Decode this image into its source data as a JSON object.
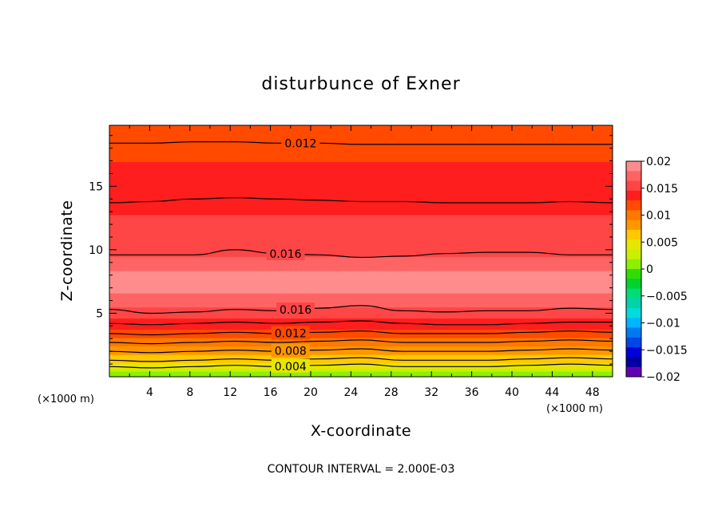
{
  "chart_data": {
    "type": "heatmap",
    "title": "disturbunce of Exner",
    "xlabel": "X-coordinate",
    "ylabel": "Z-coordinate",
    "x_unit": "(×1000 m)",
    "z_unit": "(×1000 m)",
    "xlim": [
      0,
      50
    ],
    "ylim": [
      0,
      19.8
    ],
    "x_ticks": [
      "4",
      "8",
      "12",
      "16",
      "20",
      "24",
      "28",
      "32",
      "36",
      "40",
      "44",
      "48"
    ],
    "y_ticks": [
      "5",
      "10",
      "15"
    ],
    "footer": "CONTOUR INTERVAL = 2.000E-03",
    "contour_labels": [
      "0.012",
      "0.016",
      "0.016",
      "0.012",
      "0.008",
      "0.004"
    ],
    "colorbar": {
      "ticks": [
        "0.02",
        "0.015",
        "0.01",
        "0.005",
        "0",
        "-0.005",
        "-0.01",
        "-0.015",
        "-0.02"
      ],
      "colors": [
        "#ff8c8c",
        "#ff6464",
        "#ff4646",
        "#ff1e1e",
        "#ff4a00",
        "#ff7800",
        "#ff9600",
        "#ffc800",
        "#e6e600",
        "#c8f000",
        "#8cf000",
        "#32dc00",
        "#00d230",
        "#00dc78",
        "#00d2aa",
        "#00dcdc",
        "#00b4ff",
        "#0078f0",
        "#0046e6",
        "#0000dc",
        "#0000a0",
        "#6400b4"
      ]
    },
    "level_profile": [
      {
        "z": 0.0,
        "value": 0.0
      },
      {
        "z": 0.4,
        "value": 0.002
      },
      {
        "z": 0.8,
        "value": 0.004
      },
      {
        "z": 1.3,
        "value": 0.006
      },
      {
        "z": 2.0,
        "value": 0.008
      },
      {
        "z": 2.7,
        "value": 0.01
      },
      {
        "z": 3.4,
        "value": 0.012
      },
      {
        "z": 4.3,
        "value": 0.014
      },
      {
        "z": 5.3,
        "value": 0.016
      },
      {
        "z": 6.5,
        "value": 0.018
      },
      {
        "z": 7.5,
        "value": 0.019
      },
      {
        "z": 8.5,
        "value": 0.018
      },
      {
        "z": 9.6,
        "value": 0.016
      },
      {
        "z": 13.8,
        "value": 0.014
      },
      {
        "z": 16.3,
        "value": 0.013
      },
      {
        "z": 18.4,
        "value": 0.012
      },
      {
        "z": 19.8,
        "value": 0.011
      }
    ],
    "contour_lines": [
      {
        "level": 0.012,
        "z": [
          18.4,
          18.4,
          18.5,
          18.5,
          18.4,
          18.4,
          18.3,
          18.3,
          18.3,
          18.3,
          18.3,
          18.3,
          18.3
        ],
        "label_x": 19
      },
      {
        "level": 0.014,
        "z": [
          13.7,
          13.8,
          14.0,
          14.1,
          14.0,
          13.9,
          13.8,
          13.8,
          13.7,
          13.7,
          13.7,
          13.8,
          13.7
        ],
        "label_x": null
      },
      {
        "level": 0.016,
        "z": [
          9.6,
          9.6,
          9.6,
          10.0,
          9.7,
          9.6,
          9.4,
          9.5,
          9.7,
          9.8,
          9.8,
          9.6,
          9.6
        ],
        "label_x": 17.5
      },
      {
        "level": 0.016,
        "z": [
          5.3,
          5.0,
          5.1,
          5.3,
          5.2,
          5.4,
          5.6,
          5.2,
          5.1,
          5.2,
          5.2,
          5.4,
          5.3
        ],
        "label_x": 18.5
      },
      {
        "level": 0.014,
        "z": [
          4.2,
          4.1,
          4.2,
          4.3,
          4.2,
          4.3,
          4.4,
          4.2,
          4.1,
          4.1,
          4.2,
          4.3,
          4.3
        ],
        "label_x": null
      },
      {
        "level": 0.012,
        "z": [
          3.4,
          3.3,
          3.4,
          3.5,
          3.4,
          3.5,
          3.6,
          3.4,
          3.4,
          3.4,
          3.5,
          3.6,
          3.5
        ],
        "label_x": 18
      },
      {
        "level": 0.01,
        "z": [
          2.7,
          2.6,
          2.7,
          2.8,
          2.7,
          2.8,
          2.9,
          2.7,
          2.7,
          2.7,
          2.8,
          2.9,
          2.8
        ],
        "label_x": null
      },
      {
        "level": 0.008,
        "z": [
          2.0,
          1.9,
          2.0,
          2.1,
          2.0,
          2.1,
          2.2,
          2.0,
          2.0,
          2.0,
          2.1,
          2.2,
          2.1
        ],
        "label_x": 18
      },
      {
        "level": 0.006,
        "z": [
          1.3,
          1.2,
          1.3,
          1.4,
          1.3,
          1.4,
          1.5,
          1.3,
          1.3,
          1.3,
          1.4,
          1.5,
          1.4
        ],
        "label_x": null
      },
      {
        "level": 0.004,
        "z": [
          0.8,
          0.7,
          0.8,
          0.9,
          0.8,
          0.9,
          1.0,
          0.8,
          0.8,
          0.8,
          0.9,
          1.0,
          0.9
        ],
        "label_x": 18
      }
    ],
    "grid": false,
    "legend": "right"
  }
}
